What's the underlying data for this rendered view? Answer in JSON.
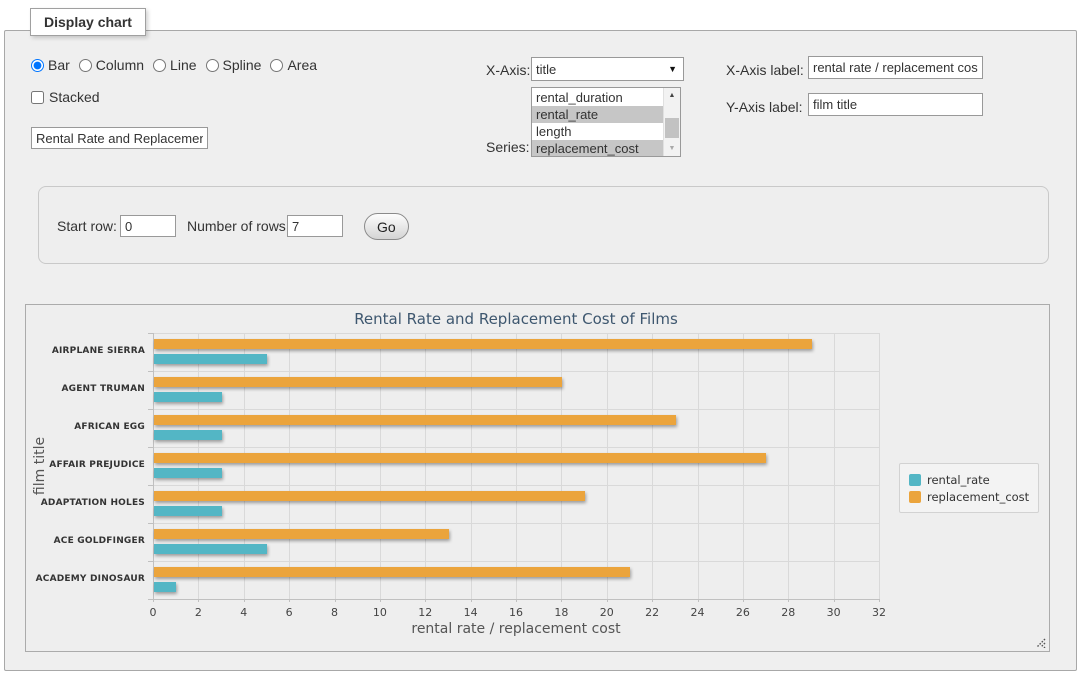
{
  "form": {
    "fieldset_legend": "Display chart",
    "chart_types": [
      {
        "label": "Bar",
        "checked": true
      },
      {
        "label": "Column",
        "checked": false
      },
      {
        "label": "Line",
        "checked": false
      },
      {
        "label": "Spline",
        "checked": false
      },
      {
        "label": "Area",
        "checked": false
      }
    ],
    "stacked": {
      "label": "Stacked",
      "checked": false
    },
    "title_input": {
      "value": "Rental Rate and Replacement Cost of Films"
    },
    "x_axis": {
      "label": "X-Axis:",
      "selected": "title"
    },
    "series_select": {
      "label": "Series:",
      "options": [
        {
          "label": "rental_duration",
          "selected": false
        },
        {
          "label": "rental_rate",
          "selected": true
        },
        {
          "label": "length",
          "selected": false
        },
        {
          "label": "replacement_cost",
          "selected": true
        }
      ]
    },
    "x_axis_label": {
      "label": "X-Axis label:",
      "value": "rental rate / replacement cost"
    },
    "y_axis_label": {
      "label": "Y-Axis label:",
      "value": "film title"
    },
    "rows": {
      "start_row_label": "Start row:",
      "start_row_value": "0",
      "num_rows_label": "Number of rows:",
      "num_rows_value": "7",
      "go_label": "Go"
    }
  },
  "chart_data": {
    "type": "bar",
    "orientation": "horizontal",
    "title": "Rental Rate and Replacement Cost of Films",
    "xlabel": "rental rate / replacement cost",
    "ylabel": "film title",
    "xlim": [
      0,
      32
    ],
    "tick_interval": 2,
    "grid": true,
    "legend_position": "right",
    "categories": [
      "AIRPLANE SIERRA",
      "AGENT TRUMAN",
      "AFRICAN EGG",
      "AFFAIR PREJUDICE",
      "ADAPTATION HOLES",
      "ACE GOLDFINGER",
      "ACADEMY DINOSAUR"
    ],
    "series": [
      {
        "name": "rental_rate",
        "color": "#53b6c5",
        "values": [
          4.99,
          2.99,
          2.99,
          2.99,
          2.99,
          4.99,
          0.99
        ]
      },
      {
        "name": "replacement_cost",
        "color": "#eba43c",
        "values": [
          28.99,
          17.99,
          22.99,
          26.99,
          18.99,
          12.99,
          20.99
        ]
      }
    ]
  }
}
